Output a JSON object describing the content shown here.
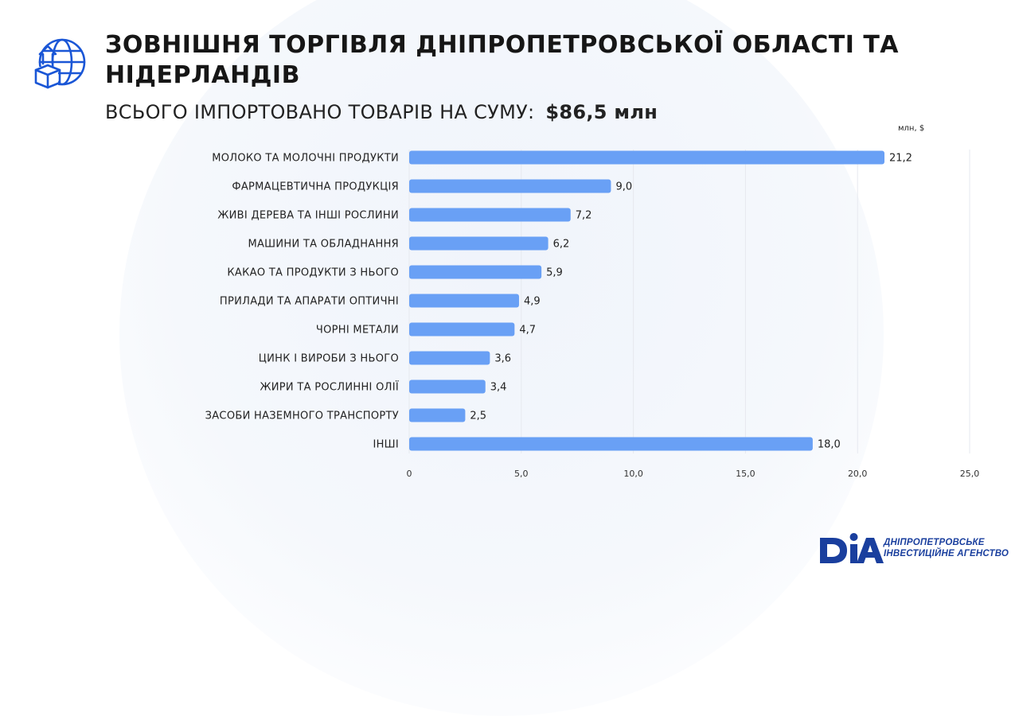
{
  "header": {
    "icon": "globe-box-upload-icon",
    "title": "ЗОВНІШНЯ ТОРГІВЛЯ ДНІПРОПЕТРОВСЬКОЇ ОБЛАСТІ ТА НІДЕРЛАНДІВ",
    "subtitle_label": "ВСЬОГО ІМПОРТОВАНО ТОВАРІВ НА СУМУ:",
    "subtitle_total": "$86,5 млн"
  },
  "logo": {
    "mark": "DIA",
    "line1": "ДНІПРОПЕТРОВСЬКЕ",
    "line2": "ІНВЕСТИЦІЙНЕ АГЕНСТВО"
  },
  "colors": {
    "bar": "#69a0f5",
    "accent": "#1a3f9e",
    "grid": "#e6e9ef"
  },
  "chart_data": {
    "type": "bar",
    "orientation": "horizontal",
    "unit_label": "млн, $",
    "categories": [
      "МОЛОКО ТА МОЛОЧНІ ПРОДУКТИ",
      "ФАРМАЦЕВТИЧНА ПРОДУКЦІЯ",
      "ЖИВІ ДЕРЕВА ТА ІНШІ РОСЛИНИ",
      "МАШИНИ ТА ОБЛАДНАННЯ",
      "КАКАО ТА ПРОДУКТИ З НЬОГО",
      "ПРИЛАДИ ТА АПАРАТИ ОПТИЧНІ",
      "ЧОРНІ МЕТАЛИ",
      "ЦИНК І ВИРОБИ З НЬОГО",
      "ЖИРИ ТА РОСЛИННІ ОЛІЇ",
      "ЗАСОБИ НАЗЕМНОГО ТРАНСПОРТУ",
      "ІНШІ"
    ],
    "values": [
      21.2,
      9.0,
      7.2,
      6.2,
      5.9,
      4.9,
      4.7,
      3.6,
      3.4,
      2.5,
      18.0
    ],
    "value_labels": [
      "21,2",
      "9,0",
      "7,2",
      "6,2",
      "5,9",
      "4,9",
      "4,7",
      "3,6",
      "3,4",
      "2,5",
      "18,0"
    ],
    "xlim": [
      0,
      25
    ],
    "ticks": [
      0,
      5,
      10,
      15,
      20,
      25
    ],
    "tick_labels": [
      "0",
      "5,0",
      "10,0",
      "15,0",
      "20,0",
      "25,0"
    ],
    "grid": true
  }
}
